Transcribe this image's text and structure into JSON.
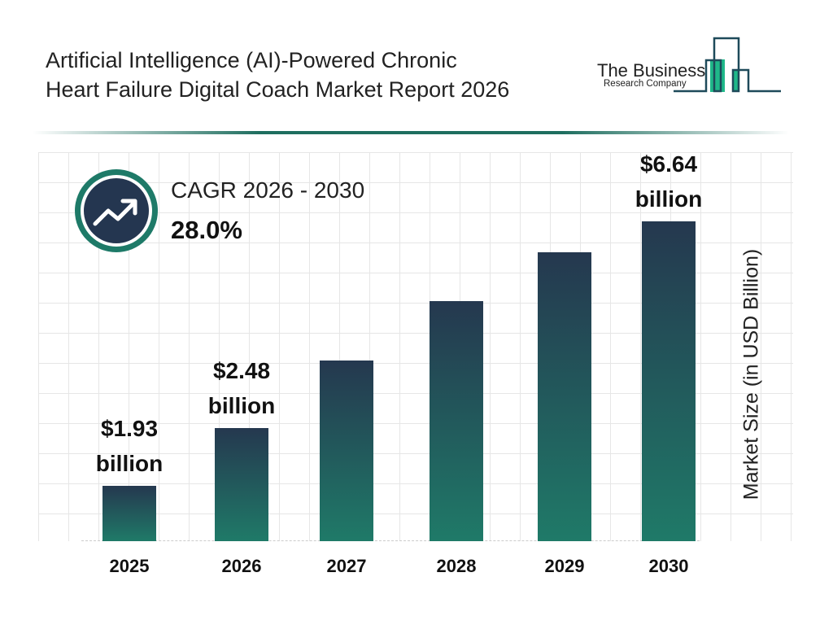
{
  "header": {
    "title_line1": "Artificial Intelligence (AI)-Powered Chronic",
    "title_line2": "Heart Failure Digital Coach Market Report 2026"
  },
  "logo": {
    "line1": "The Business",
    "line2": "Research Company"
  },
  "cagr": {
    "label": "CAGR 2026 - 2030",
    "value": "28.0%",
    "icon": "trending-up-icon"
  },
  "colors": {
    "bar_top": "#25384f",
    "bar_bottom": "#1f7a68",
    "accent": "#1e7a68"
  },
  "chart_data": {
    "type": "bar",
    "title": "",
    "xlabel": "",
    "ylabel": "Market Size (in USD Billion)",
    "categories": [
      "2025",
      "2026",
      "2027",
      "2028",
      "2029",
      "2030"
    ],
    "values": [
      1.93,
      2.48,
      3.17,
      4.06,
      5.2,
      6.64
    ],
    "data_labels": [
      {
        "index": 0,
        "line1": "$1.93",
        "line2": "billion"
      },
      {
        "index": 1,
        "line1": "$2.48",
        "line2": "billion"
      },
      {
        "index": 5,
        "line1": "$6.64",
        "line2": "billion"
      }
    ],
    "grid": true
  }
}
